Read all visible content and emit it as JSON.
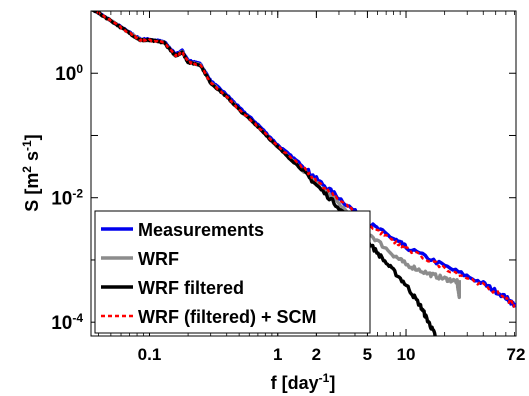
{
  "chart_data": {
    "type": "line",
    "x_scale": "log",
    "y_scale": "log",
    "xlim": [
      0.035,
      72
    ],
    "ylim": [
      6e-05,
      10
    ],
    "xlabel": "f [day",
    "xlabel_sup": "-1",
    "xlabel_close": "]",
    "ylabel": "S [m",
    "ylabel_sup1": "2",
    "ylabel_mid": " s",
    "ylabel_sup2": "-1",
    "ylabel_close": "]",
    "x_ticks": [
      {
        "value": 0.1,
        "label": "0.1"
      },
      {
        "value": 1,
        "label": "1"
      },
      {
        "value": 2,
        "label": "2"
      },
      {
        "value": 5,
        "label": "5"
      },
      {
        "value": 10,
        "label": "10"
      },
      {
        "value": 72,
        "label": "72"
      }
    ],
    "y_ticks": [
      {
        "value": 1,
        "base": "10",
        "exp": "0"
      },
      {
        "value": 0.01,
        "base": "10",
        "exp": "-2"
      },
      {
        "value": 0.0001,
        "base": "10",
        "exp": "-4"
      }
    ],
    "grid": false,
    "legend_position": "bottom-left",
    "series": [
      {
        "name": "Measurements",
        "color": "#0000ee",
        "style": "solid",
        "points": [
          [
            0.035,
            11
          ],
          [
            0.05,
            7
          ],
          [
            0.07,
            4.5
          ],
          [
            0.085,
            3.5
          ],
          [
            0.1,
            3.5
          ],
          [
            0.13,
            3.2
          ],
          [
            0.16,
            2.0
          ],
          [
            0.18,
            2.3
          ],
          [
            0.2,
            1.6
          ],
          [
            0.25,
            1.4
          ],
          [
            0.3,
            0.75
          ],
          [
            0.4,
            0.45
          ],
          [
            0.5,
            0.28
          ],
          [
            0.7,
            0.15
          ],
          [
            1,
            0.07
          ],
          [
            1.5,
            0.035
          ],
          [
            2,
            0.02
          ],
          [
            3,
            0.01
          ],
          [
            5,
            0.004
          ],
          [
            8,
            0.0022
          ],
          [
            10,
            0.0016
          ],
          [
            20,
            0.0008
          ],
          [
            40,
            0.00042
          ],
          [
            60,
            0.00025
          ],
          [
            72,
            0.00018
          ]
        ]
      },
      {
        "name": "WRF",
        "color": "#8c8c8c",
        "style": "solid",
        "points": [
          [
            0.035,
            11
          ],
          [
            0.05,
            7
          ],
          [
            0.07,
            4.4
          ],
          [
            0.085,
            3.4
          ],
          [
            0.1,
            3.4
          ],
          [
            0.13,
            3.1
          ],
          [
            0.16,
            1.9
          ],
          [
            0.18,
            2.2
          ],
          [
            0.2,
            1.5
          ],
          [
            0.25,
            1.35
          ],
          [
            0.3,
            0.7
          ],
          [
            0.4,
            0.42
          ],
          [
            0.5,
            0.26
          ],
          [
            0.7,
            0.14
          ],
          [
            1,
            0.065
          ],
          [
            1.5,
            0.03
          ],
          [
            2,
            0.017
          ],
          [
            3,
            0.008
          ],
          [
            5,
            0.0028
          ],
          [
            8,
            0.0012
          ],
          [
            10,
            0.00085
          ],
          [
            15,
            0.0006
          ],
          [
            20,
            0.0005
          ],
          [
            25,
            0.00045
          ],
          [
            26,
            0.00025
          ]
        ]
      },
      {
        "name": "WRF filtered",
        "color": "#000000",
        "style": "solid",
        "points": [
          [
            0.035,
            11
          ],
          [
            0.05,
            7
          ],
          [
            0.07,
            4.4
          ],
          [
            0.085,
            3.4
          ],
          [
            0.1,
            3.4
          ],
          [
            0.13,
            3.1
          ],
          [
            0.16,
            1.9
          ],
          [
            0.18,
            2.2
          ],
          [
            0.2,
            1.5
          ],
          [
            0.25,
            1.35
          ],
          [
            0.3,
            0.7
          ],
          [
            0.4,
            0.42
          ],
          [
            0.5,
            0.26
          ],
          [
            0.7,
            0.14
          ],
          [
            1,
            0.065
          ],
          [
            1.5,
            0.03
          ],
          [
            2,
            0.016
          ],
          [
            3,
            0.007
          ],
          [
            5,
            0.002
          ],
          [
            7,
            0.0009
          ],
          [
            10,
            0.0004
          ],
          [
            13,
            0.00018
          ],
          [
            15,
            0.0001
          ],
          [
            17,
            6e-05
          ]
        ]
      },
      {
        "name": "WRF (filtered) + SCM",
        "color": "#ff0000",
        "style": "dotted",
        "points": [
          [
            0.035,
            11
          ],
          [
            0.05,
            7
          ],
          [
            0.07,
            4.4
          ],
          [
            0.085,
            3.4
          ],
          [
            0.1,
            3.4
          ],
          [
            0.13,
            3.1
          ],
          [
            0.16,
            1.9
          ],
          [
            0.18,
            2.2
          ],
          [
            0.2,
            1.5
          ],
          [
            0.25,
            1.35
          ],
          [
            0.3,
            0.7
          ],
          [
            0.4,
            0.42
          ],
          [
            0.5,
            0.26
          ],
          [
            0.7,
            0.14
          ],
          [
            1,
            0.067
          ],
          [
            1.5,
            0.033
          ],
          [
            2,
            0.019
          ],
          [
            3,
            0.0095
          ],
          [
            5,
            0.0038
          ],
          [
            8,
            0.002
          ],
          [
            10,
            0.0015
          ],
          [
            20,
            0.00075
          ],
          [
            40,
            0.0004
          ],
          [
            60,
            0.00024
          ],
          [
            72,
            0.00018
          ]
        ]
      }
    ]
  }
}
